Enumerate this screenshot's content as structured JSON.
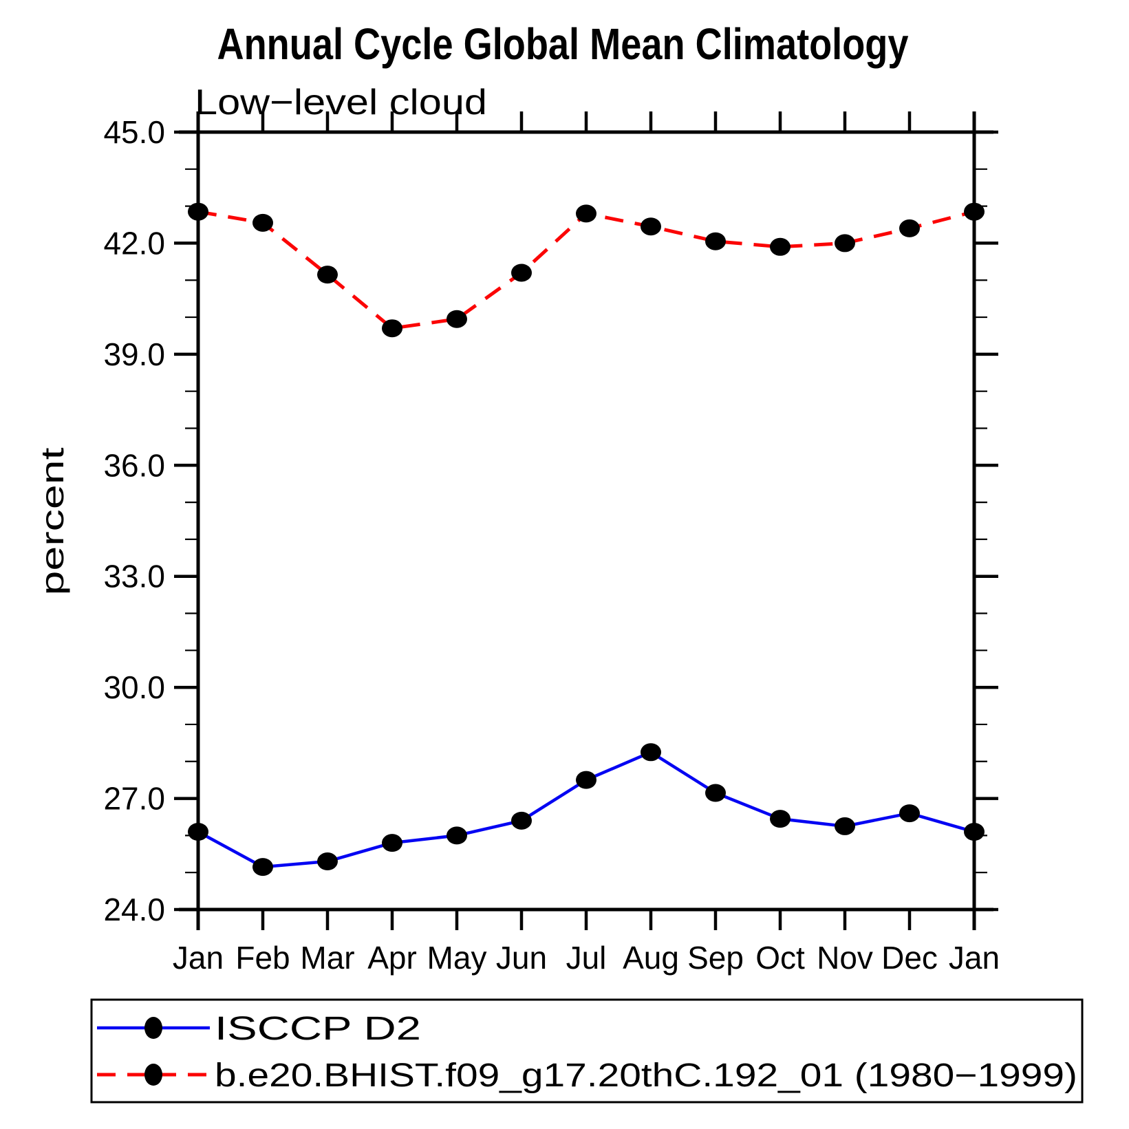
{
  "chart_data": {
    "type": "line",
    "title": "Annual Cycle Global Mean Climatology",
    "subtitle": "Low−level cloud",
    "xlabel": "",
    "ylabel": "percent",
    "categories": [
      "Jan",
      "Feb",
      "Mar",
      "Apr",
      "May",
      "Jun",
      "Jul",
      "Aug",
      "Sep",
      "Oct",
      "Nov",
      "Dec",
      "Jan"
    ],
    "series": [
      {
        "name": "ISCCP D2",
        "line_style": "solid",
        "color": "#0505f2",
        "marker": "filled-circle",
        "marker_color": "#000000",
        "values": [
          26.1,
          25.15,
          25.3,
          25.8,
          26.0,
          26.4,
          27.5,
          28.25,
          27.15,
          26.45,
          26.25,
          26.6,
          26.1
        ]
      },
      {
        "name": "b.e20.BHIST.f09_g17.20thC.192_01 (1980−1999)",
        "line_style": "dashed",
        "color": "#fb0505",
        "marker": "filled-circle",
        "marker_color": "#000000",
        "values": [
          42.85,
          42.55,
          41.15,
          39.7,
          39.95,
          41.2,
          42.8,
          42.45,
          42.05,
          41.9,
          42.0,
          42.4,
          42.85
        ]
      }
    ],
    "ylim": [
      24.0,
      45.0
    ],
    "ytick_labels": [
      "45.0",
      "42.0",
      "39.0",
      "36.0",
      "33.0",
      "30.0",
      "27.0",
      "24.0"
    ],
    "yticks_major": [
      45,
      42,
      39,
      36,
      33,
      30,
      27,
      24
    ],
    "ytick_minor_step": 1,
    "grid": false,
    "legend_position": "bottom",
    "axis_color": "#000000"
  }
}
